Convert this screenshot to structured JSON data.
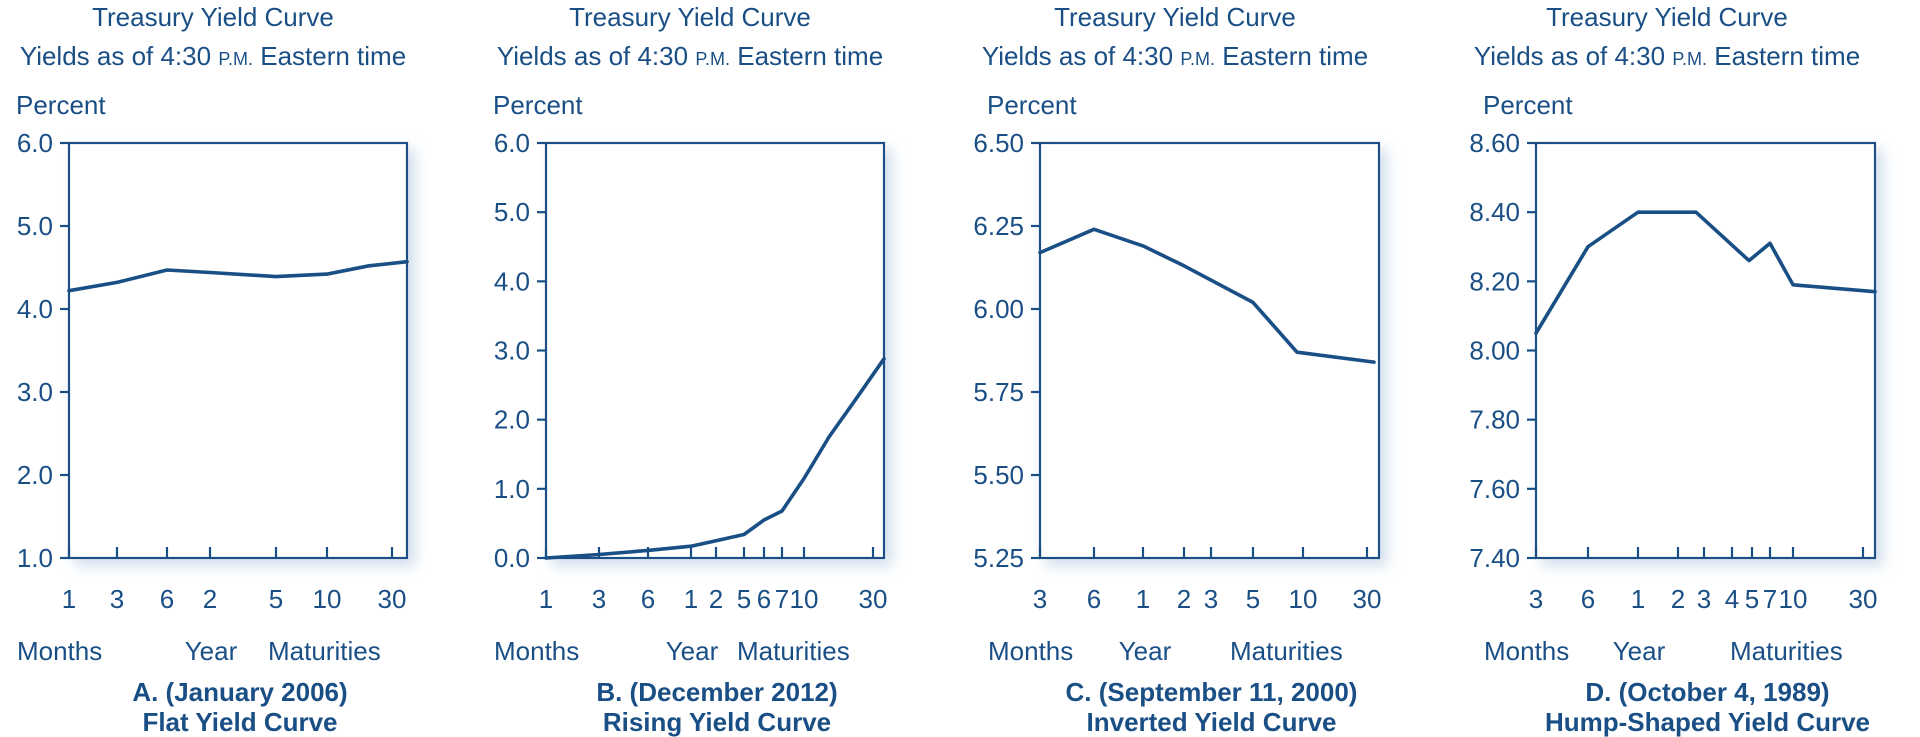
{
  "colors": {
    "ink": "#1a4f86",
    "background": "#ffffff",
    "shadow": "#d5e1ee"
  },
  "chart_data": [
    {
      "type": "line",
      "title": "Treasury Yield Curve",
      "subtitle_prefix": "Yields as of 4:30 ",
      "subtitle_pm": "P.M.",
      "subtitle_suffix": " Eastern time",
      "ylabel": "Percent",
      "ylim": [
        1.0,
        6.0
      ],
      "yticks": [
        "6.0",
        "5.0",
        "4.0",
        "3.0",
        "2.0",
        "1.0"
      ],
      "xticks": [
        "1",
        "3",
        "6",
        "2",
        "5",
        "10",
        "30"
      ],
      "xgroups": [
        "Months",
        "Year",
        "Maturities"
      ],
      "caption_line1": "A. (January 2006)",
      "caption_line2": "Flat Yield Curve",
      "grid": false,
      "series": [
        {
          "values": [
            4.22,
            4.32,
            4.47,
            4.44,
            4.39,
            4.42,
            4.52,
            4.57
          ]
        }
      ]
    },
    {
      "type": "line",
      "title": "Treasury Yield Curve",
      "subtitle_prefix": "Yields as of 4:30 ",
      "subtitle_pm": "P.M.",
      "subtitle_suffix": " Eastern time",
      "ylabel": "Percent",
      "ylim": [
        0.0,
        6.0
      ],
      "yticks": [
        "6.0",
        "5.0",
        "4.0",
        "3.0",
        "2.0",
        "1.0",
        "0.0"
      ],
      "xticks": [
        "1",
        "3",
        "6",
        "1",
        "2",
        "5",
        "6",
        "7",
        "10",
        "30"
      ],
      "xgroups": [
        "Months",
        "Year",
        "Maturities"
      ],
      "caption_line1": "B. (December 2012)",
      "caption_line2": "Rising Yield Curve",
      "grid": false,
      "series": [
        {
          "values": [
            0.0,
            0.05,
            0.11,
            0.17,
            0.25,
            0.34,
            0.55,
            0.68,
            1.15,
            1.75,
            2.3,
            2.88
          ]
        }
      ]
    },
    {
      "type": "line",
      "title": "Treasury Yield Curve",
      "subtitle_prefix": "Yields as of 4:30 ",
      "subtitle_pm": "P.M.",
      "subtitle_suffix": " Eastern time",
      "ylabel": "Percent",
      "ylim": [
        5.25,
        6.5
      ],
      "yticks": [
        "6.50",
        "6.25",
        "6.00",
        "5.75",
        "5.50",
        "5.25"
      ],
      "xticks": [
        "3",
        "6",
        "1",
        "2",
        "3",
        "5",
        "10",
        "30"
      ],
      "xgroups": [
        "Months",
        "Year",
        "Maturities"
      ],
      "caption_line1": "C. (September 11, 2000)",
      "caption_line2": "Inverted Yield Curve",
      "grid": false,
      "series": [
        {
          "values": [
            6.17,
            6.24,
            6.19,
            6.13,
            6.02,
            5.87,
            5.84
          ]
        }
      ]
    },
    {
      "type": "line",
      "title": "Treasury Yield Curve",
      "subtitle_prefix": "Yields as of 4:30 ",
      "subtitle_pm": "P.M.",
      "subtitle_suffix": " Eastern time",
      "ylabel": "Percent",
      "ylim": [
        7.4,
        8.6
      ],
      "yticks": [
        "8.60",
        "8.40",
        "8.20",
        "8.00",
        "7.80",
        "7.60",
        "7.40"
      ],
      "xticks": [
        "3",
        "6",
        "1",
        "2",
        "3",
        "4",
        "5",
        "7",
        "10",
        "30"
      ],
      "xgroups": [
        "Months",
        "Year",
        "Maturities"
      ],
      "caption_line1": "D. (October 4, 1989)",
      "caption_line2": "Hump-Shaped Yield Curve",
      "grid": false,
      "series": [
        {
          "values": [
            8.05,
            8.3,
            8.4,
            8.4,
            8.26,
            8.31,
            8.19,
            8.17
          ]
        }
      ]
    }
  ]
}
